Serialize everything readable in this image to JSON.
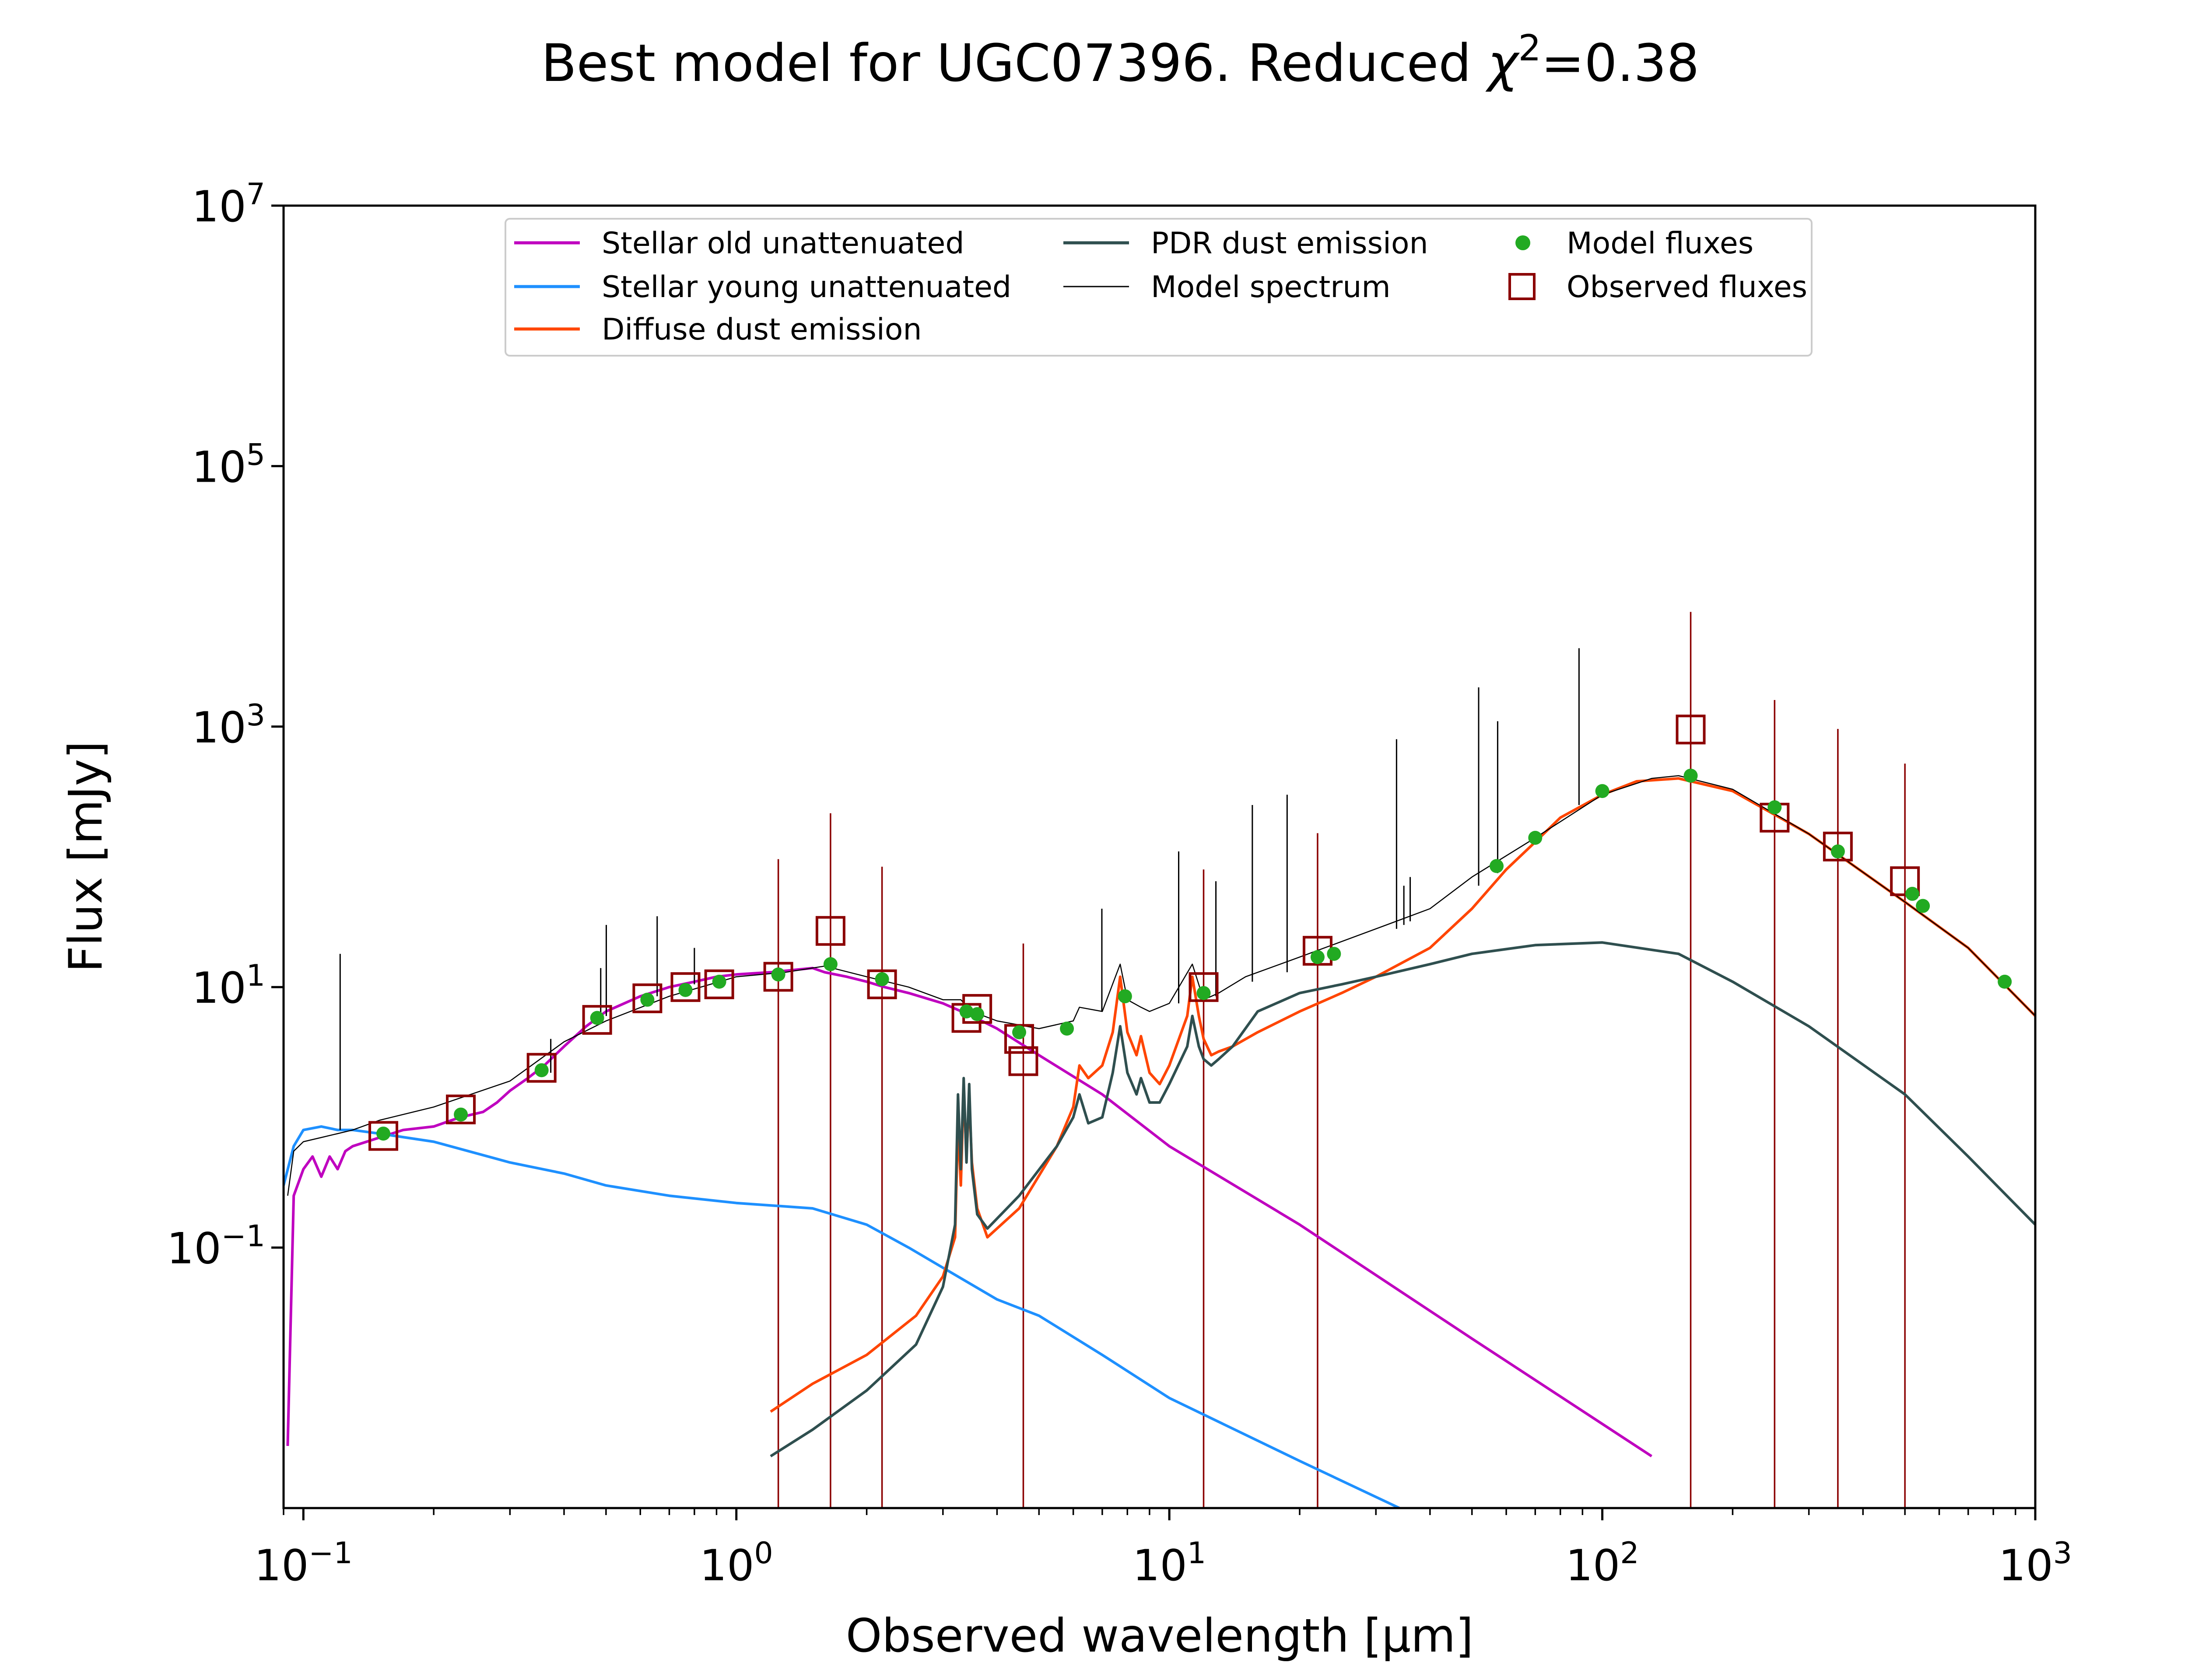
{
  "chart_data": {
    "type": "line",
    "title": {
      "main": "Best model for UGC07396. Reduced ",
      "chi": "χ",
      "chi_exp": "2",
      "value": "=0.38"
    },
    "xlabel": "Observed wavelength [μm]",
    "ylabel": "Flux [mJy]",
    "xscale": "log",
    "yscale": "log",
    "xlim": [
      0.09,
      1000
    ],
    "ylim": [
      0.001,
      10000000
    ],
    "x_ticks": [
      {
        "value": 0.1,
        "base": "10",
        "exp": "−1"
      },
      {
        "value": 1,
        "base": "10",
        "exp": "0"
      },
      {
        "value": 10,
        "base": "10",
        "exp": "1"
      },
      {
        "value": 100,
        "base": "10",
        "exp": "2"
      },
      {
        "value": 1000,
        "base": "10",
        "exp": "3"
      }
    ],
    "y_ticks": [
      {
        "value": 0.1,
        "base": "10",
        "exp": "−1"
      },
      {
        "value": 10,
        "base": "10",
        "exp": "1"
      },
      {
        "value": 1000,
        "base": "10",
        "exp": "3"
      },
      {
        "value": 100000,
        "base": "10",
        "exp": "5"
      },
      {
        "value": 10000000,
        "base": "10",
        "exp": "7"
      }
    ],
    "grid": false,
    "legend_position": "top-center",
    "legend": [
      {
        "label": "Stellar old unattenuated",
        "kind": "line",
        "color": "#bf00bf"
      },
      {
        "label": "Stellar young unattenuated",
        "kind": "line",
        "color": "#1e90ff"
      },
      {
        "label": "Diffuse dust emission",
        "kind": "line",
        "color": "#ff4500"
      },
      {
        "label": "PDR dust emission",
        "kind": "line",
        "color": "#2f4f4f"
      },
      {
        "label": "Model spectrum",
        "kind": "thinline",
        "color": "#000000"
      },
      {
        "label": "Model fluxes",
        "kind": "dot",
        "color": "#22aa22"
      },
      {
        "label": "Observed fluxes",
        "kind": "square",
        "color": "#8b0000"
      }
    ],
    "series": [
      {
        "key": "old",
        "color": "#bf00bf",
        "width": 6,
        "x": [
          0.092,
          0.095,
          0.1,
          0.105,
          0.11,
          0.115,
          0.12,
          0.125,
          0.13,
          0.14,
          0.15,
          0.17,
          0.2,
          0.23,
          0.26,
          0.28,
          0.3,
          0.33,
          0.36,
          0.4,
          0.45,
          0.5,
          0.6,
          0.7,
          0.8,
          0.9,
          1.0,
          1.2,
          1.5,
          1.6,
          1.8,
          2.0,
          2.2,
          2.5,
          3.0,
          3.5,
          4.0,
          5.0,
          7.0,
          10,
          20,
          50,
          130
        ],
        "y": [
          0.003,
          0.25,
          0.4,
          0.5,
          0.35,
          0.5,
          0.4,
          0.55,
          0.6,
          0.65,
          0.7,
          0.8,
          0.85,
          1.0,
          1.1,
          1.3,
          1.6,
          2.0,
          2.5,
          3.5,
          5.0,
          6.5,
          8.5,
          10,
          11,
          12,
          12.5,
          13,
          14,
          13,
          12,
          11,
          10,
          9,
          7.5,
          6,
          4.8,
          3.0,
          1.5,
          0.6,
          0.15,
          0.02,
          0.0025
        ]
      },
      {
        "key": "young",
        "color": "#1e90ff",
        "width": 6,
        "x": [
          0.09,
          0.095,
          0.1,
          0.11,
          0.12,
          0.13,
          0.15,
          0.2,
          0.3,
          0.4,
          0.5,
          0.7,
          1.0,
          1.5,
          2.0,
          2.5,
          3.0,
          4.0,
          5.0,
          7.0,
          10,
          20,
          34
        ],
        "y": [
          0.3,
          0.6,
          0.8,
          0.85,
          0.8,
          0.8,
          0.75,
          0.65,
          0.45,
          0.37,
          0.3,
          0.25,
          0.22,
          0.2,
          0.15,
          0.1,
          0.07,
          0.04,
          0.03,
          0.015,
          0.007,
          0.0023,
          0.001
        ]
      },
      {
        "key": "diffuse",
        "color": "#ff4500",
        "width": 6,
        "x": [
          1.2,
          1.5,
          2.0,
          2.6,
          3.0,
          3.2,
          3.25,
          3.3,
          3.35,
          3.4,
          3.45,
          3.5,
          3.6,
          3.8,
          4.5,
          5.5,
          6.0,
          6.2,
          6.5,
          7.0,
          7.4,
          7.7,
          8.0,
          8.4,
          8.6,
          9.0,
          9.5,
          10,
          11,
          11.3,
          11.7,
          12,
          12.5,
          13,
          14,
          16,
          20,
          25,
          30,
          40,
          50,
          60,
          70,
          80,
          100,
          120,
          150,
          200,
          300,
          500,
          700,
          1000
        ],
        "y": [
          0.0055,
          0.009,
          0.015,
          0.03,
          0.06,
          0.12,
          0.9,
          0.3,
          1.7,
          0.5,
          1.4,
          0.45,
          0.2,
          0.12,
          0.2,
          0.6,
          1.2,
          2.5,
          2.0,
          2.5,
          4.5,
          12,
          4.5,
          3.0,
          4.2,
          2.2,
          1.8,
          2.5,
          6.0,
          12,
          6.0,
          4.0,
          3.0,
          3.2,
          3.5,
          4.5,
          6.5,
          9,
          12,
          20,
          40,
          80,
          130,
          200,
          300,
          380,
          400,
          320,
          150,
          45,
          20,
          6
        ]
      },
      {
        "key": "pdr",
        "color": "#2f4f4f",
        "width": 6,
        "x": [
          1.2,
          1.5,
          2.0,
          2.6,
          3.0,
          3.2,
          3.25,
          3.3,
          3.35,
          3.4,
          3.45,
          3.5,
          3.6,
          3.8,
          4.5,
          5.5,
          6.0,
          6.2,
          6.5,
          7.0,
          7.4,
          7.7,
          8.0,
          8.4,
          8.6,
          9.0,
          9.5,
          10,
          11,
          11.3,
          11.7,
          12,
          12.5,
          13,
          14,
          16,
          20,
          25,
          30,
          40,
          50,
          70,
          100,
          150,
          200,
          300,
          500,
          700,
          1000
        ],
        "y": [
          0.0025,
          0.004,
          0.008,
          0.018,
          0.05,
          0.15,
          1.5,
          0.4,
          2.0,
          0.45,
          1.8,
          0.4,
          0.18,
          0.14,
          0.25,
          0.6,
          1.0,
          1.5,
          0.9,
          1.0,
          2.2,
          5.0,
          2.2,
          1.5,
          2.0,
          1.3,
          1.3,
          1.8,
          3.5,
          6.0,
          3.5,
          2.8,
          2.5,
          2.8,
          3.5,
          6.5,
          9,
          10.5,
          12,
          15,
          18,
          21,
          22,
          18,
          11,
          5,
          1.5,
          0.5,
          0.15
        ]
      },
      {
        "key": "model",
        "color": "#000000",
        "width": 2.5,
        "x": [
          0.092,
          0.095,
          0.1,
          0.11,
          0.12,
          0.13,
          0.15,
          0.2,
          0.3,
          0.4,
          0.5,
          0.7,
          1.0,
          1.3,
          1.6,
          2.0,
          2.5,
          3.0,
          3.3,
          3.5,
          4.0,
          5.0,
          6.0,
          6.2,
          7.0,
          7.7,
          8.0,
          8.6,
          9.0,
          10,
          11.3,
          12,
          13,
          15,
          20,
          30,
          40,
          50,
          70,
          100,
          130,
          150,
          200,
          300,
          500,
          700,
          1000
        ],
        "y": [
          0.25,
          0.55,
          0.65,
          0.7,
          0.75,
          0.8,
          0.95,
          1.2,
          1.9,
          3.8,
          5.5,
          8.5,
          12,
          13,
          14.5,
          12,
          10,
          8,
          8,
          6.5,
          5.5,
          4.8,
          5.5,
          7,
          6.5,
          15,
          8,
          7,
          6.5,
          7.5,
          15,
          8,
          9,
          12,
          17,
          28,
          40,
          70,
          140,
          300,
          400,
          420,
          330,
          150,
          45,
          20,
          6
        ]
      }
    ],
    "model_spikes": [
      {
        "x": 0.1216,
        "top": 18,
        "base": 0.8
      },
      {
        "x": 0.3727,
        "top": 4.0,
        "base": 2.2
      },
      {
        "x": 0.4861,
        "top": 14,
        "base": 5.8
      },
      {
        "x": 0.5007,
        "top": 30,
        "base": 6.0
      },
      {
        "x": 0.6563,
        "top": 35,
        "base": 8.5
      },
      {
        "x": 0.8,
        "top": 20,
        "base": 10.5
      },
      {
        "x": 6.985,
        "top": 40,
        "base": 6.5
      },
      {
        "x": 10.51,
        "top": 110,
        "base": 7.5
      },
      {
        "x": 12.81,
        "top": 65,
        "base": 8.5
      },
      {
        "x": 15.55,
        "top": 250,
        "base": 11
      },
      {
        "x": 18.71,
        "top": 300,
        "base": 13
      },
      {
        "x": 33.48,
        "top": 800,
        "base": 28
      },
      {
        "x": 34.81,
        "top": 60,
        "base": 30
      },
      {
        "x": 36.0,
        "top": 70,
        "base": 32
      },
      {
        "x": 51.81,
        "top": 2000,
        "base": 60
      },
      {
        "x": 57.32,
        "top": 1100,
        "base": 75
      },
      {
        "x": 88.36,
        "top": 4000,
        "base": 250
      },
      {
        "x": 157.7,
        "top": 450,
        "base": 420
      }
    ],
    "model_fluxes": {
      "color": "#22aa22",
      "points": [
        {
          "x": 0.153,
          "y": 0.75
        },
        {
          "x": 0.231,
          "y": 1.05
        },
        {
          "x": 0.355,
          "y": 2.3
        },
        {
          "x": 0.477,
          "y": 5.8
        },
        {
          "x": 0.623,
          "y": 8.0
        },
        {
          "x": 0.763,
          "y": 9.5
        },
        {
          "x": 0.913,
          "y": 11.0
        },
        {
          "x": 1.25,
          "y": 12.5
        },
        {
          "x": 1.65,
          "y": 15.0
        },
        {
          "x": 2.17,
          "y": 11.5
        },
        {
          "x": 3.4,
          "y": 6.5
        },
        {
          "x": 3.6,
          "y": 6.2
        },
        {
          "x": 4.5,
          "y": 4.5
        },
        {
          "x": 5.8,
          "y": 4.8
        },
        {
          "x": 7.9,
          "y": 8.5
        },
        {
          "x": 12.0,
          "y": 9.0
        },
        {
          "x": 22.0,
          "y": 17.0
        },
        {
          "x": 24.0,
          "y": 18.0
        },
        {
          "x": 57.0,
          "y": 85.0
        },
        {
          "x": 70.0,
          "y": 140.0
        },
        {
          "x": 100.0,
          "y": 320.0
        },
        {
          "x": 160.0,
          "y": 420.0
        },
        {
          "x": 250.0,
          "y": 240.0
        },
        {
          "x": 350.0,
          "y": 110.0
        },
        {
          "x": 520.0,
          "y": 52.0
        },
        {
          "x": 550.0,
          "y": 42.0
        },
        {
          "x": 850.0,
          "y": 11.0
        }
      ]
    },
    "observed_fluxes": {
      "color": "#8b0000",
      "points": [
        {
          "x": 0.153,
          "y": 0.72,
          "upper_limit": false
        },
        {
          "x": 0.231,
          "y": 1.15,
          "upper_limit": false
        },
        {
          "x": 0.355,
          "y": 2.4,
          "upper_limit": false
        },
        {
          "x": 0.477,
          "y": 5.6,
          "upper_limit": false
        },
        {
          "x": 0.623,
          "y": 8.2,
          "upper_limit": false
        },
        {
          "x": 0.763,
          "y": 10.0,
          "upper_limit": false
        },
        {
          "x": 0.913,
          "y": 10.5,
          "upper_limit": false
        },
        {
          "x": 1.25,
          "y": 12.0,
          "upper_limit": true
        },
        {
          "x": 1.65,
          "y": 27.0,
          "upper_limit": true
        },
        {
          "x": 2.17,
          "y": 10.5,
          "upper_limit": true
        },
        {
          "x": 3.4,
          "y": 5.8,
          "upper_limit": false
        },
        {
          "x": 3.6,
          "y": 6.8,
          "upper_limit": false
        },
        {
          "x": 4.5,
          "y": 4.0,
          "upper_limit": false
        },
        {
          "x": 4.6,
          "y": 2.7,
          "upper_limit": true
        },
        {
          "x": 12.0,
          "y": 10.0,
          "upper_limit": true
        },
        {
          "x": 22.0,
          "y": 19.0,
          "upper_limit": true
        },
        {
          "x": 160.0,
          "y": 950.0,
          "upper_limit": true
        },
        {
          "x": 250.0,
          "y": 200.0,
          "upper_limit": true
        },
        {
          "x": 350.0,
          "y": 120.0,
          "upper_limit": true
        },
        {
          "x": 500.0,
          "y": 65.0,
          "upper_limit": true
        }
      ]
    }
  }
}
